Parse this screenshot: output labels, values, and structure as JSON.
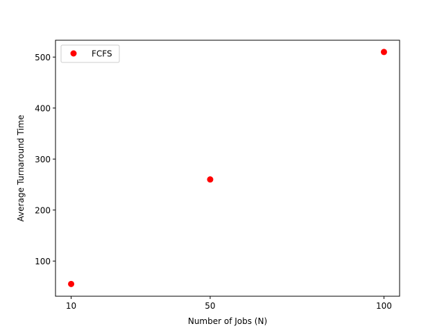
{
  "chart_data": {
    "type": "scatter",
    "title": "",
    "xlabel": "Number of Jobs (N)",
    "ylabel": "Average Turnaround Time",
    "xlim": [
      5.5,
      104.5
    ],
    "ylim": [
      31,
      533
    ],
    "xticks": [
      10,
      50,
      100
    ],
    "yticks": [
      100,
      200,
      300,
      400,
      500
    ],
    "grid": false,
    "legend": {
      "position": "top-left"
    },
    "series": [
      {
        "name": "FCFS",
        "color": "#ff0000",
        "marker": "circle",
        "points": [
          {
            "x": 10,
            "y": 55
          },
          {
            "x": 50,
            "y": 260
          },
          {
            "x": 100,
            "y": 510
          }
        ]
      }
    ]
  }
}
